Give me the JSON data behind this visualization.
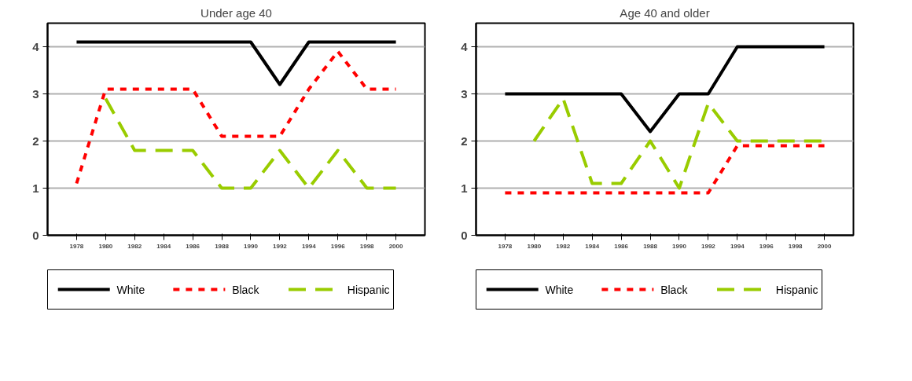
{
  "chart_data": [
    {
      "type": "line",
      "title": "Under age 40",
      "x": [
        1978,
        1980,
        1982,
        1984,
        1986,
        1988,
        1990,
        1992,
        1994,
        1996,
        1998,
        2000
      ],
      "xlim": [
        1976,
        2002
      ],
      "xticks": [
        1978,
        1980,
        1982,
        1984,
        1986,
        1988,
        1990,
        1992,
        1994,
        1996,
        1998,
        2000
      ],
      "ylim": [
        0,
        4.5
      ],
      "yticks": [
        0,
        1,
        2,
        3,
        4
      ],
      "grid": "y",
      "legend": "bottom",
      "series": [
        {
          "name": "White",
          "color": "#000000",
          "line_style": "solid",
          "values": [
            4.1,
            4.1,
            4.1,
            4.1,
            4.1,
            4.1,
            4.1,
            3.2,
            4.1,
            4.1,
            4.1,
            4.1
          ]
        },
        {
          "name": "Black",
          "color": "#ff0000",
          "line_style": "dotted",
          "values": [
            1.1,
            3.1,
            3.1,
            3.1,
            3.1,
            2.1,
            2.1,
            2.1,
            3.1,
            3.9,
            3.1,
            3.1
          ]
        },
        {
          "name": "Hispanic",
          "color": "#99cc00",
          "line_style": "dashed",
          "values": [
            null,
            2.9,
            1.8,
            1.8,
            1.8,
            1.0,
            1.0,
            1.8,
            1.0,
            1.8,
            1.0,
            1.0
          ]
        }
      ]
    },
    {
      "type": "line",
      "title": "Age 40 and older",
      "x": [
        1978,
        1980,
        1982,
        1984,
        1986,
        1988,
        1990,
        1992,
        1994,
        1996,
        1998,
        2000
      ],
      "xlim": [
        1976,
        2002
      ],
      "xticks": [
        1978,
        1980,
        1982,
        1984,
        1986,
        1988,
        1990,
        1992,
        1994,
        1996,
        1998,
        2000
      ],
      "ylim": [
        0,
        4.5
      ],
      "yticks": [
        0,
        1,
        2,
        3,
        4
      ],
      "grid": "y",
      "legend": "bottom",
      "series": [
        {
          "name": "White",
          "color": "#000000",
          "line_style": "solid",
          "values": [
            3.0,
            3.0,
            3.0,
            3.0,
            3.0,
            2.2,
            3.0,
            3.0,
            4.0,
            4.0,
            4.0,
            4.0
          ]
        },
        {
          "name": "Black",
          "color": "#ff0000",
          "line_style": "dotted",
          "values": [
            0.9,
            0.9,
            0.9,
            0.9,
            0.9,
            0.9,
            0.9,
            0.9,
            1.9,
            1.9,
            1.9,
            1.9
          ]
        },
        {
          "name": "Hispanic",
          "color": "#99cc00",
          "line_style": "dashed",
          "values": [
            null,
            2.0,
            2.9,
            1.1,
            1.1,
            2.0,
            1.0,
            2.8,
            2.0,
            2.0,
            2.0,
            2.0
          ]
        }
      ]
    }
  ]
}
